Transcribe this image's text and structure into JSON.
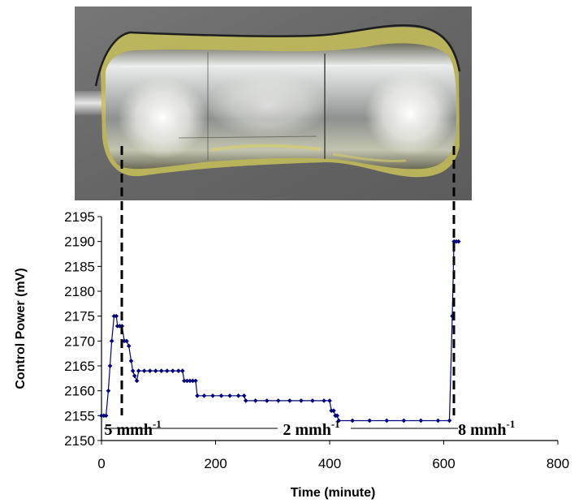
{
  "chart_data": {
    "type": "line",
    "title": "",
    "xlabel": "Time (minute)",
    "ylabel": "Control Power (mV)",
    "xlim": [
      0,
      800
    ],
    "ylim": [
      2150,
      2195
    ],
    "x_ticks": [
      0,
      200,
      400,
      600,
      800
    ],
    "y_ticks": [
      2150,
      2155,
      2160,
      2165,
      2170,
      2175,
      2180,
      2185,
      2190,
      2195
    ],
    "grid": false,
    "legend": "none",
    "series": [
      {
        "color": "#00007f",
        "points": [
          [
            0,
            2155
          ],
          [
            4,
            2155
          ],
          [
            8,
            2155
          ],
          [
            12,
            2160
          ],
          [
            15,
            2165
          ],
          [
            18,
            2170
          ],
          [
            22,
            2175
          ],
          [
            26,
            2175
          ],
          [
            28,
            2173
          ],
          [
            32,
            2173
          ],
          [
            36,
            2173
          ],
          [
            40,
            2170
          ],
          [
            44,
            2170
          ],
          [
            48,
            2169
          ],
          [
            52,
            2166
          ],
          [
            55,
            2164
          ],
          [
            58,
            2163
          ],
          [
            62,
            2162
          ],
          [
            65,
            2164
          ],
          [
            75,
            2164
          ],
          [
            85,
            2164
          ],
          [
            95,
            2164
          ],
          [
            105,
            2164
          ],
          [
            115,
            2164
          ],
          [
            125,
            2164
          ],
          [
            135,
            2164
          ],
          [
            142,
            2164
          ],
          [
            145,
            2162
          ],
          [
            150,
            2162
          ],
          [
            155,
            2162
          ],
          [
            160,
            2162
          ],
          [
            165,
            2162
          ],
          [
            168,
            2159
          ],
          [
            180,
            2159
          ],
          [
            195,
            2159
          ],
          [
            210,
            2159
          ],
          [
            225,
            2159
          ],
          [
            240,
            2159
          ],
          [
            250,
            2159
          ],
          [
            253,
            2158
          ],
          [
            270,
            2158
          ],
          [
            290,
            2158
          ],
          [
            310,
            2158
          ],
          [
            330,
            2158
          ],
          [
            350,
            2158
          ],
          [
            370,
            2158
          ],
          [
            390,
            2158
          ],
          [
            400,
            2158
          ],
          [
            403,
            2156
          ],
          [
            407,
            2156
          ],
          [
            410,
            2155
          ],
          [
            413,
            2155
          ],
          [
            416,
            2154
          ],
          [
            440,
            2154
          ],
          [
            470,
            2154
          ],
          [
            500,
            2154
          ],
          [
            530,
            2154
          ],
          [
            560,
            2154
          ],
          [
            590,
            2154
          ],
          [
            610,
            2154
          ],
          [
            615,
            2175
          ],
          [
            618,
            2190
          ],
          [
            622,
            2190
          ],
          [
            626,
            2190
          ]
        ]
      }
    ],
    "annotations": [
      {
        "text": "5 mmh",
        "sup": "-1",
        "x": 5,
        "y": 2152.3
      },
      {
        "text": "2 mmh",
        "sup": "-1",
        "x": 318,
        "y": 2152.3
      },
      {
        "text": "8 mmh",
        "sup": "-1",
        "x": 625,
        "y": 2152.3
      }
    ],
    "photo": {
      "description_colors": {
        "background": "#6e6e6e",
        "fluid": "#c8c15a",
        "body": "#b9bcb8"
      }
    }
  }
}
